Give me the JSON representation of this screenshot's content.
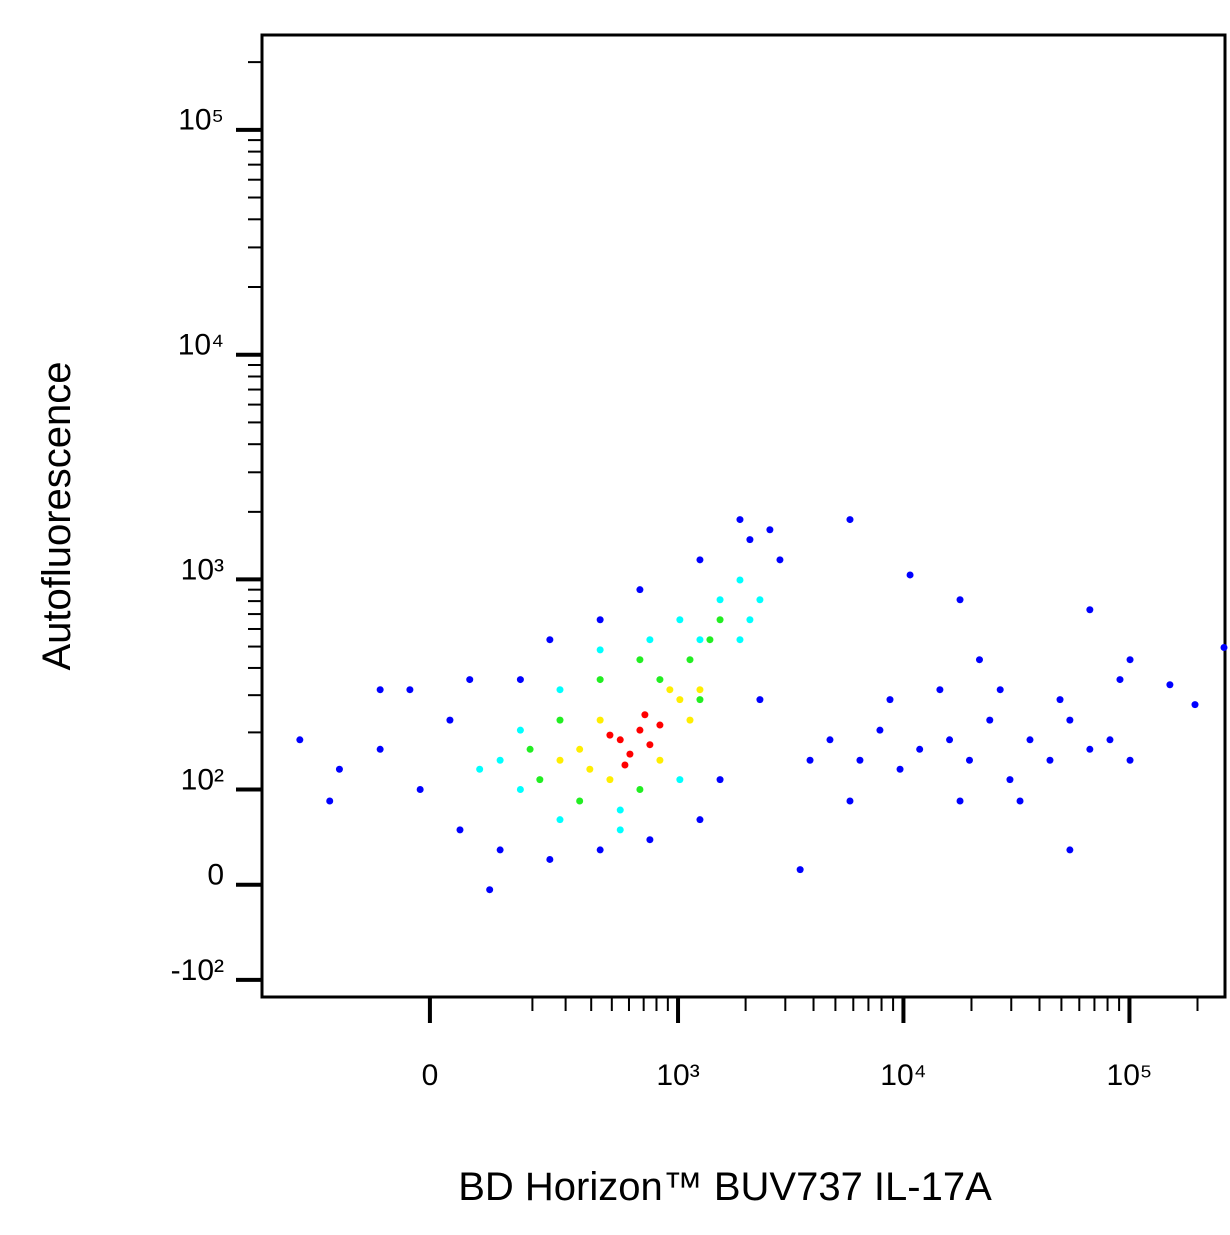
{
  "chart_data": {
    "type": "scatter",
    "x_label": "BD Horizon™ BUV737 IL-17A",
    "y_label": "Autofluorescence",
    "scale": "biexponential",
    "xlim": [
      -430,
      264700
    ],
    "ylim": [
      -125,
      264000
    ],
    "xticks": [
      {
        "value": 0,
        "label": "0"
      },
      {
        "value": 1000,
        "label": "10³"
      },
      {
        "value": 10000,
        "label": "10⁴"
      },
      {
        "value": 100000,
        "label": "10⁵"
      }
    ],
    "yticks": [
      {
        "value": -100,
        "label": "-10²"
      },
      {
        "value": 0,
        "label": "0"
      },
      {
        "value": 100,
        "label": "10²"
      },
      {
        "value": 1000,
        "label": "10³"
      },
      {
        "value": 10000,
        "label": "10⁴"
      },
      {
        "value": 100000,
        "label": "10⁵"
      }
    ],
    "xminorticks": [
      200,
      300,
      400,
      500,
      600,
      700,
      800,
      900,
      2000,
      3000,
      4000,
      5000,
      6000,
      7000,
      8000,
      9000,
      20000,
      30000,
      40000,
      50000,
      60000,
      70000,
      80000,
      90000,
      200000
    ],
    "yminorticks": [
      200,
      300,
      400,
      500,
      600,
      700,
      800,
      900,
      2000,
      3000,
      4000,
      5000,
      6000,
      7000,
      8000,
      9000,
      20000,
      30000,
      40000,
      50000,
      60000,
      70000,
      80000,
      90000,
      200000
    ],
    "series": [
      {
        "color": "#0000ff",
        "x": [
          -281,
          -170,
          -85,
          -16,
          33,
          50,
          125,
          249,
          441,
          747,
          1253,
          1540,
          2315,
          2840,
          2563,
          2090,
          1888,
          1253,
          673,
          441,
          249,
          170,
          67,
          -33,
          -85,
          -194,
          104,
          3490,
          5800,
          10700,
          17800,
          4730,
          6420,
          7870,
          9660,
          11800,
          16000,
          19600,
          24100,
          29600,
          36300,
          44500,
          54500,
          66800,
          82000,
          100600,
          8720,
          14500,
          26800,
          49300,
          90800,
          17800,
          32800,
          54500,
          66800,
          100600,
          151000,
          195000,
          262000,
          21700,
          5800,
          3860
        ],
        "y": [
          184,
          130,
          165,
          100,
          229,
          52,
          32,
          23,
          32,
          42,
          63,
          114,
          286,
          1223,
          1665,
          1505,
          1848,
          1223,
          900,
          660,
          537,
          354,
          354,
          318,
          318,
          85,
          -4.5,
          13.6,
          1848,
          1047,
          811,
          184,
          145,
          205,
          130,
          165,
          184,
          145,
          229,
          114,
          184,
          145,
          229,
          165,
          184,
          145,
          286,
          318,
          318,
          286,
          354,
          85,
          85,
          32,
          732,
          436,
          335,
          271,
          495,
          436,
          85,
          145
        ]
      },
      {
        "color": "#00ffff",
        "x": [
          125,
          170,
          281,
          547,
          1019,
          1540,
          1888,
          2090,
          1253,
          747,
          441,
          170,
          281,
          1888,
          1019,
          2315,
          547,
          85
        ],
        "y": [
          145,
          100,
          63,
          74,
          114,
          811,
          994,
          660,
          537,
          537,
          483,
          205,
          318,
          537,
          660,
          811,
          52,
          130
        ]
      },
      {
        "color": "#22ee22",
        "x": [
          220,
          281,
          441,
          673,
          1131,
          1388,
          1253,
          352,
          673,
          194,
          829,
          1540
        ],
        "y": [
          114,
          229,
          354,
          436,
          436,
          537,
          286,
          85,
          100,
          165,
          354,
          660
        ]
      },
      {
        "color": "#ffee00",
        "x": [
          352,
          394,
          441,
          1019,
          919,
          1131,
          490,
          829,
          1253,
          281
        ],
        "y": [
          165,
          130,
          229,
          286,
          318,
          229,
          114,
          145,
          318,
          145
        ]
      },
      {
        "color": "#ff0000",
        "x": [
          547,
          673,
          747,
          606,
          829,
          490,
          709,
          575
        ],
        "y": [
          184,
          205,
          174,
          156,
          217,
          194,
          243,
          137
        ]
      }
    ]
  }
}
